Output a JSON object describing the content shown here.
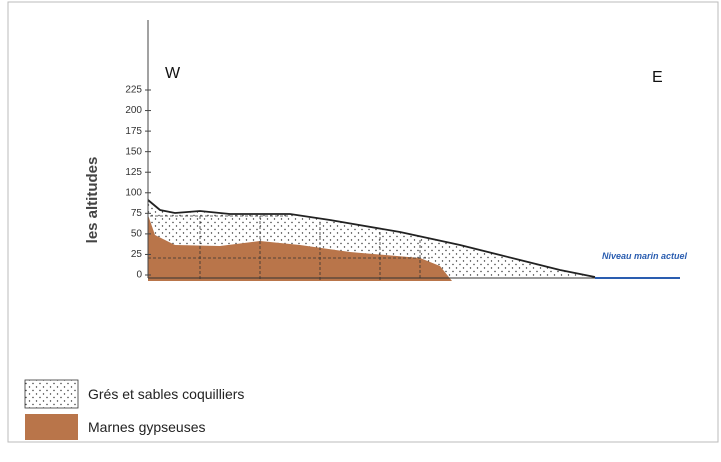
{
  "axis": {
    "label": "les altitudes",
    "ticks": [
      0,
      25,
      50,
      75,
      100,
      125,
      150,
      175,
      200,
      225
    ]
  },
  "labels": {
    "west": "W",
    "east": "E",
    "sea_level": "Niveau marin actuel"
  },
  "legend": [
    "Grés et sables coquilliers",
    "Marnes gypseuses"
  ]
}
